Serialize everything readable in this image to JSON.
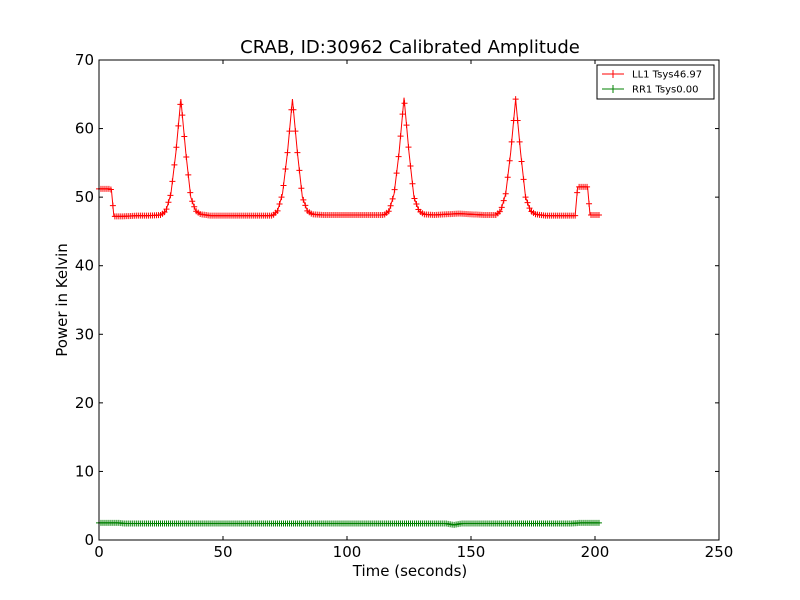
{
  "chart_data": {
    "type": "line",
    "title": "CRAB, ID:30962 Calibrated Amplitude",
    "xlabel": "Time (seconds)",
    "ylabel": "Power in Kelvin",
    "xlim": [
      0,
      250
    ],
    "ylim": [
      0,
      70
    ],
    "xticks": [
      "0",
      "50",
      "100",
      "150",
      "200",
      "250"
    ],
    "yticks": [
      "0",
      "10",
      "20",
      "30",
      "40",
      "50",
      "60",
      "70"
    ],
    "grid": false,
    "legend_position": "top-right",
    "marker": "plus",
    "series": [
      {
        "name": "LL1 Tsys46.97",
        "color": "#ff0000",
        "x": [
          0,
          1,
          2,
          3,
          4,
          5,
          6,
          7,
          8,
          10,
          15,
          20,
          25,
          27,
          29,
          31,
          33,
          35,
          37,
          39,
          41,
          45,
          50,
          55,
          60,
          65,
          70,
          72,
          74,
          76,
          78,
          80,
          82,
          84,
          86,
          90,
          95,
          100,
          105,
          110,
          115,
          117,
          119,
          121,
          123,
          125,
          127,
          129,
          131,
          135,
          140,
          145,
          150,
          155,
          160,
          162,
          164,
          166,
          168,
          170,
          172,
          174,
          176,
          180,
          185,
          190,
          192,
          193,
          194,
          195,
          196,
          197,
          198,
          199,
          200,
          202
        ],
        "values": [
          51.2,
          51.2,
          51.2,
          51.2,
          51.2,
          51.1,
          47.2,
          47.2,
          47.2,
          47.2,
          47.3,
          47.3,
          47.4,
          48.0,
          50.5,
          56.5,
          64.3,
          56.5,
          50.0,
          48.0,
          47.5,
          47.3,
          47.3,
          47.3,
          47.3,
          47.3,
          47.3,
          48.0,
          50.5,
          56.5,
          64.3,
          56.5,
          50.0,
          48.0,
          47.5,
          47.4,
          47.4,
          47.4,
          47.4,
          47.4,
          47.4,
          48.0,
          50.5,
          56.5,
          64.5,
          56.5,
          50.0,
          48.0,
          47.5,
          47.4,
          47.5,
          47.6,
          47.5,
          47.4,
          47.4,
          48.0,
          50.5,
          56.5,
          64.3,
          56.5,
          50.0,
          48.0,
          47.5,
          47.3,
          47.3,
          47.3,
          47.3,
          51.5,
          51.5,
          51.5,
          51.5,
          51.5,
          47.4,
          47.4,
          47.4,
          47.4
        ]
      },
      {
        "name": "RR1 Tsys0.00",
        "color": "#008000",
        "x": [
          0,
          2,
          4,
          6,
          8,
          10,
          50,
          100,
          140,
          143,
          146,
          150,
          190,
          194,
          196,
          198,
          200,
          202
        ],
        "values": [
          2.5,
          2.5,
          2.5,
          2.5,
          2.5,
          2.4,
          2.4,
          2.4,
          2.4,
          2.2,
          2.4,
          2.4,
          2.4,
          2.5,
          2.5,
          2.5,
          2.5,
          2.5
        ]
      }
    ]
  }
}
